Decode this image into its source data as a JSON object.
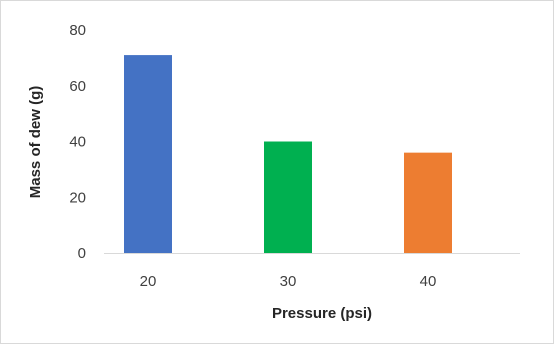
{
  "chart_data": {
    "type": "bar",
    "title": "",
    "xlabel": "Pressure (psi)",
    "ylabel": "Mass of dew (g)",
    "categories": [
      "20",
      "30",
      "40"
    ],
    "values": [
      71,
      40,
      36
    ],
    "bar_colors": [
      "#4472c4",
      "#00b050",
      "#ed7d31"
    ],
    "ylim": [
      0,
      80
    ],
    "yticks": [
      0,
      20,
      40,
      60,
      80
    ],
    "ytick_labels": [
      "0",
      "20",
      "40",
      "60",
      "80"
    ],
    "grid": false,
    "legend": "none"
  },
  "colors": {
    "axis_line": "#d9d9d9",
    "frame": "#d9d9d9"
  }
}
